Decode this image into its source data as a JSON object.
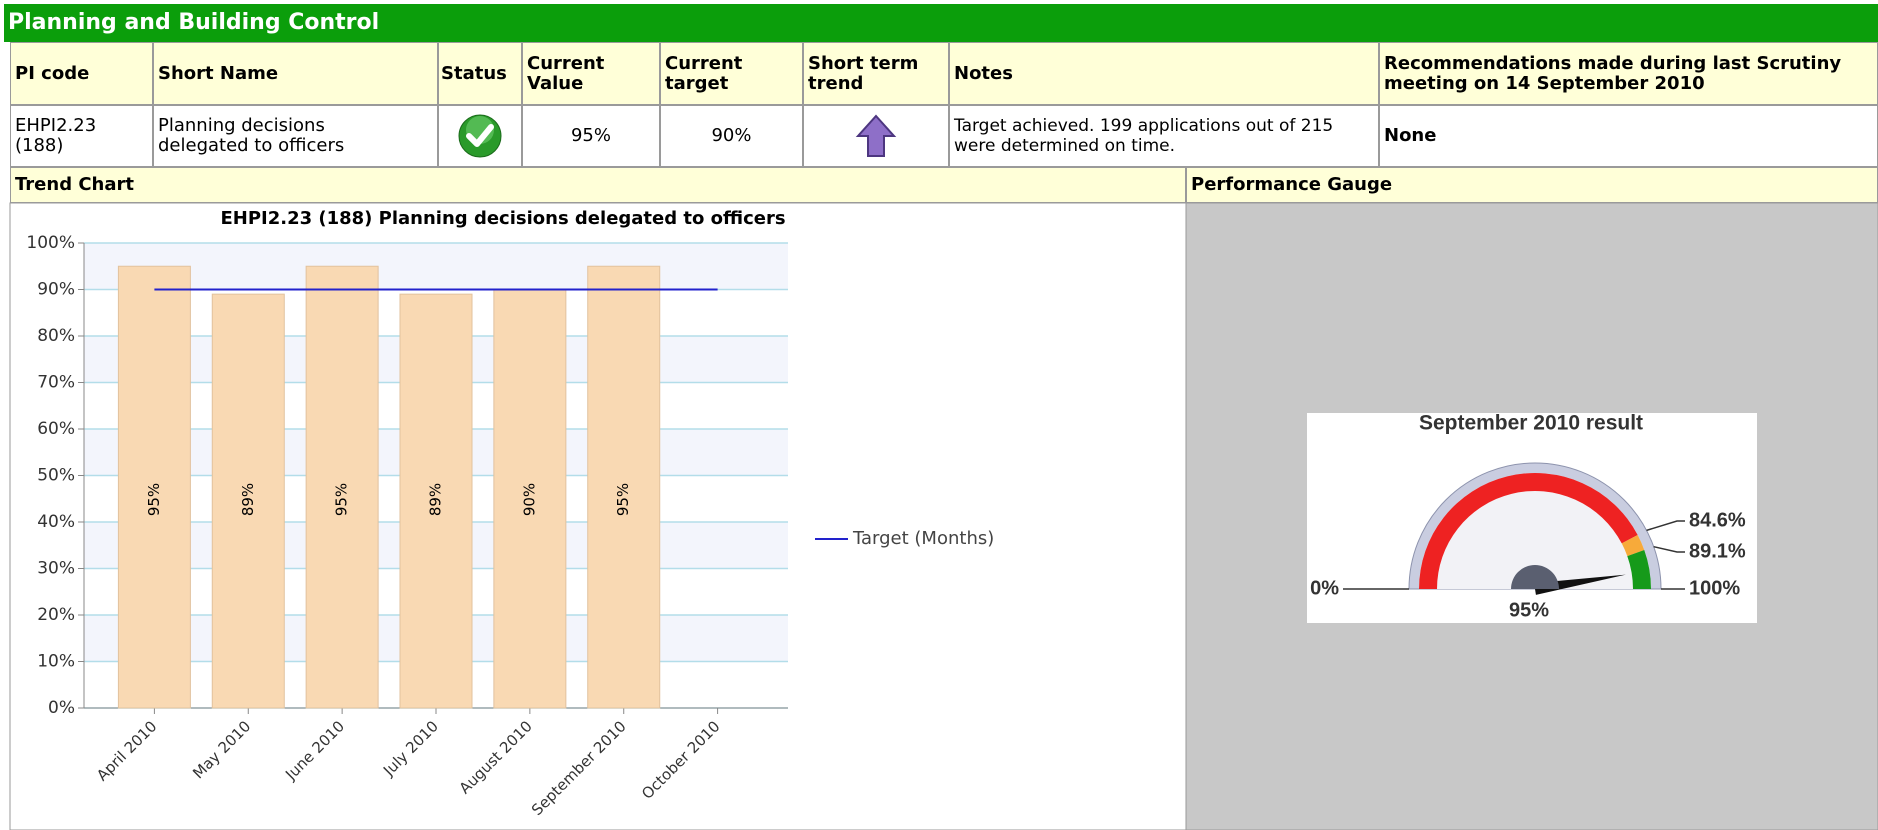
{
  "header": {
    "title": "Planning and Building Control"
  },
  "table": {
    "columns": [
      "PI code",
      "Short Name",
      "Status",
      "Current Value",
      "Current target",
      "Short term trend",
      "Notes",
      "Recommendations made during last Scrutiny meeting on 14 September 2010"
    ],
    "row": {
      "pi_code": "EHPI2.23 (188)",
      "short_name": "Planning decisions delegated to officers",
      "current_value": "95%",
      "current_target": "90%",
      "notes": "Target achieved. 199 applications out of 215 were determined on time.",
      "recommendations": "None"
    }
  },
  "sections": {
    "trend_chart": "Trend Chart",
    "performance_gauge": "Performance Gauge"
  },
  "chart_data": [
    {
      "type": "bar",
      "title": "EHPI2.23 (188) Planning decisions delegated to officers",
      "categories": [
        "April 2010",
        "May 2010",
        "June 2010",
        "July 2010",
        "August 2010",
        "September 2010",
        "October 2010"
      ],
      "values": [
        95,
        89,
        95,
        89,
        90,
        95,
        null
      ],
      "value_labels": [
        "95%",
        "89%",
        "95%",
        "89%",
        "90%",
        "95%",
        null
      ],
      "color": "#f9d9b3",
      "target": {
        "name": "Target (Months)",
        "color": "#2222cc",
        "values": [
          90,
          90,
          90,
          90,
          90,
          90,
          90
        ]
      },
      "ylim": [
        0,
        100
      ],
      "yticks": [
        {
          "value": 0,
          "label": "0%"
        },
        {
          "value": 10,
          "label": "10%"
        },
        {
          "value": 20,
          "label": "20%"
        },
        {
          "value": 30,
          "label": "30%"
        },
        {
          "value": 40,
          "label": "40%"
        },
        {
          "value": 50,
          "label": "50%"
        },
        {
          "value": 60,
          "label": "60%"
        },
        {
          "value": 70,
          "label": "70%"
        },
        {
          "value": 80,
          "label": "80%"
        },
        {
          "value": 90,
          "label": "90%"
        },
        {
          "value": 100,
          "label": "100%"
        }
      ],
      "grid": true
    },
    {
      "type": "gauge",
      "title": "September 2010 result",
      "value": 95,
      "value_label": "95%",
      "ticks": [
        {
          "value": 0,
          "label": "0%"
        },
        {
          "value": 84.6,
          "label": "84.6%"
        },
        {
          "value": 89.1,
          "label": "89.1%"
        },
        {
          "value": 100,
          "label": "100%"
        }
      ],
      "band_colors": [
        "#ee2222",
        "#f7aa3a",
        "#169a1a"
      ]
    }
  ]
}
